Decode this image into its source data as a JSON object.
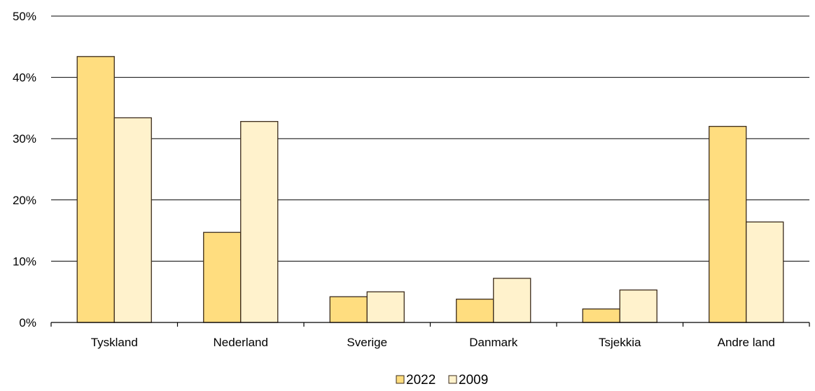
{
  "chart_data": {
    "type": "bar",
    "categories": [
      "Tyskland",
      "Nederland",
      "Sverige",
      "Danmark",
      "Tsjekkia",
      "Andre land"
    ],
    "series": [
      {
        "name": "2022",
        "values": [
          43.4,
          14.7,
          4.2,
          3.8,
          2.2,
          32.0
        ],
        "color": "#FFDD7F"
      },
      {
        "name": "2009",
        "values": [
          33.4,
          32.8,
          5.0,
          7.2,
          5.3,
          16.4
        ],
        "color": "#FFF2CC"
      }
    ],
    "ylim": [
      0,
      50
    ],
    "yticks": [
      0,
      10,
      20,
      30,
      40,
      50
    ],
    "ytick_labels": [
      "0%",
      "10%",
      "20%",
      "30%",
      "40%",
      "50%"
    ],
    "grid": true,
    "legend": "bottom-center",
    "bar_edge_color": "#3a2a1a"
  }
}
